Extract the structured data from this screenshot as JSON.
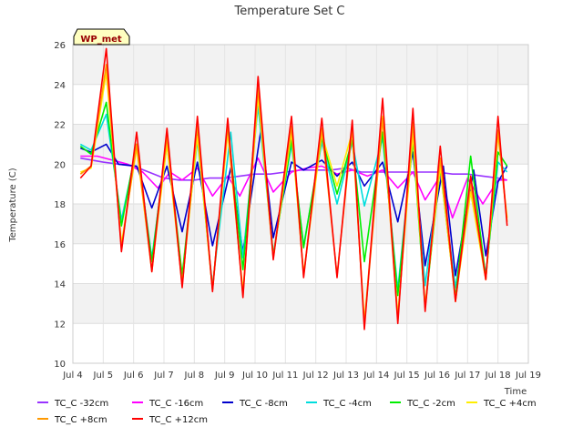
{
  "chart_data": {
    "type": "line",
    "title": "Temperature Set C",
    "xlabel": "Time",
    "ylabel": "Temperature (C)",
    "ylim": [
      10,
      26
    ],
    "xlim": [
      4,
      19
    ],
    "yticks": [
      10,
      12,
      14,
      16,
      18,
      20,
      22,
      24,
      26
    ],
    "xticks": [
      4,
      5,
      6,
      7,
      8,
      9,
      10,
      11,
      12,
      13,
      14,
      15,
      16,
      17,
      18,
      19
    ],
    "xtick_labels": [
      "Jul 4",
      "Jul 5",
      "Jul 6",
      "Jul 7",
      "Jul 8",
      "Jul 9",
      "Jul 10",
      "Jul 11",
      "Jul 12",
      "Jul 13",
      "Jul 14",
      "Jul 15",
      "Jul 16",
      "Jul 17",
      "Jul 18",
      "Jul 19"
    ],
    "grid": true,
    "badge": "WP_met",
    "legend_position": "bottom",
    "series": [
      {
        "name": "TC_C -32cm",
        "color": "#9933ff",
        "x": [
          4.25,
          5.0,
          5.5,
          6.0,
          6.5,
          7.0,
          7.5,
          8.0,
          8.5,
          9.0,
          9.5,
          10.0,
          10.5,
          11.0,
          11.5,
          12.0,
          12.5,
          13.0,
          13.5,
          14.0,
          14.5,
          15.0,
          15.5,
          16.0,
          16.5,
          17.0,
          17.5,
          18.0,
          18.3
        ],
        "y": [
          20.3,
          20.1,
          20.0,
          19.9,
          19.6,
          19.3,
          19.2,
          19.2,
          19.3,
          19.3,
          19.4,
          19.5,
          19.5,
          19.6,
          19.7,
          19.7,
          19.7,
          19.8,
          19.6,
          19.6,
          19.6,
          19.6,
          19.6,
          19.6,
          19.5,
          19.5,
          19.4,
          19.3,
          19.2
        ]
      },
      {
        "name": "TC_C -16cm",
        "color": "#ff00ff",
        "x": [
          4.25,
          4.8,
          5.3,
          5.8,
          6.3,
          6.8,
          7.2,
          7.6,
          8.1,
          8.6,
          9.1,
          9.5,
          10.1,
          10.6,
          11.2,
          11.7,
          12.2,
          12.7,
          13.2,
          13.7,
          14.2,
          14.7,
          15.2,
          15.6,
          16.1,
          16.5,
          17.0,
          17.5,
          18.0,
          18.3
        ],
        "y": [
          20.4,
          20.4,
          20.2,
          20.0,
          19.6,
          18.8,
          19.6,
          19.2,
          19.8,
          18.4,
          19.4,
          18.4,
          20.3,
          18.6,
          19.6,
          19.8,
          19.9,
          19.5,
          19.7,
          19.4,
          19.7,
          18.8,
          19.6,
          18.2,
          19.4,
          17.3,
          19.3,
          18.0,
          19.2,
          19.2
        ]
      },
      {
        "name": "TC_C -8cm",
        "color": "#0000cc",
        "x": [
          4.25,
          4.6,
          5.1,
          5.5,
          6.1,
          6.6,
          7.1,
          7.6,
          8.1,
          8.6,
          9.2,
          9.6,
          10.2,
          10.6,
          11.2,
          11.6,
          12.2,
          12.7,
          13.2,
          13.6,
          14.2,
          14.7,
          15.2,
          15.6,
          16.2,
          16.6,
          17.2,
          17.6,
          18.0,
          18.3
        ],
        "y": [
          20.8,
          20.6,
          21.0,
          20.0,
          19.9,
          17.8,
          19.9,
          16.6,
          20.1,
          15.9,
          19.8,
          15.6,
          21.8,
          16.3,
          20.1,
          19.7,
          20.2,
          19.4,
          20.1,
          18.9,
          20.1,
          17.1,
          20.6,
          14.9,
          19.9,
          14.4,
          19.7,
          15.4,
          19.1,
          19.9
        ]
      },
      {
        "name": "TC_C -4cm",
        "color": "#00dddd",
        "x": [
          4.25,
          4.6,
          5.1,
          5.6,
          6.1,
          6.6,
          7.1,
          7.6,
          8.1,
          8.6,
          9.2,
          9.6,
          10.1,
          10.6,
          11.2,
          11.6,
          12.2,
          12.7,
          13.2,
          13.6,
          14.2,
          14.7,
          15.2,
          15.6,
          16.1,
          16.6,
          17.1,
          17.6,
          18.0,
          18.3
        ],
        "y": [
          21.0,
          20.7,
          22.5,
          17.2,
          20.8,
          15.3,
          21.0,
          14.3,
          21.2,
          13.9,
          21.6,
          15.3,
          22.9,
          15.5,
          21.0,
          15.9,
          21.1,
          18.0,
          21.1,
          17.9,
          21.3,
          13.7,
          21.2,
          13.9,
          19.9,
          13.8,
          18.6,
          14.5,
          20.1,
          19.6
        ]
      },
      {
        "name": "TC_C -2cm",
        "color": "#00ee00",
        "x": [
          4.25,
          4.6,
          5.1,
          5.6,
          6.1,
          6.6,
          7.1,
          7.6,
          8.1,
          8.6,
          9.1,
          9.6,
          10.1,
          10.6,
          11.2,
          11.6,
          12.2,
          12.7,
          13.2,
          13.6,
          14.2,
          14.7,
          15.2,
          15.6,
          16.1,
          16.6,
          17.1,
          17.6,
          18.0,
          18.3
        ],
        "y": [
          20.9,
          20.5,
          23.1,
          16.9,
          21.0,
          15.1,
          21.3,
          14.4,
          21.6,
          13.7,
          21.9,
          14.7,
          23.6,
          15.4,
          21.2,
          15.8,
          21.3,
          18.5,
          21.2,
          15.1,
          21.6,
          13.4,
          21.2,
          12.8,
          19.8,
          13.3,
          20.4,
          14.3,
          20.6,
          19.9
        ]
      },
      {
        "name": "TC_C +4cm",
        "color": "#ffee00",
        "x": [
          4.25,
          4.6,
          5.1,
          5.6,
          6.1,
          6.6,
          7.1,
          7.6,
          8.1,
          8.6,
          9.1,
          9.6,
          10.1,
          10.6,
          11.2,
          11.6,
          12.2,
          12.7,
          13.2,
          13.6,
          14.2,
          14.7,
          15.2,
          15.6,
          16.1,
          16.6,
          17.1,
          17.6,
          18.0,
          18.3
        ],
        "y": [
          19.6,
          19.8,
          24.6,
          16.0,
          20.8,
          14.7,
          21.0,
          14.0,
          21.4,
          13.7,
          21.6,
          13.6,
          23.4,
          15.3,
          21.6,
          14.5,
          21.5,
          18.9,
          21.6,
          12.1,
          22.4,
          12.4,
          21.5,
          12.9,
          19.9,
          13.2,
          18.6,
          14.2,
          21.5,
          17.3
        ]
      },
      {
        "name": "TC_C +8cm",
        "color": "#ff9900",
        "x": [
          4.25,
          4.6,
          5.1,
          5.6,
          6.1,
          6.6,
          7.1,
          7.6,
          8.1,
          8.6,
          9.1,
          9.6,
          10.1,
          10.6,
          11.2,
          11.6,
          12.2,
          12.7,
          13.2,
          13.6,
          14.2,
          14.7,
          15.2,
          15.6,
          16.1,
          16.6,
          17.1,
          17.6,
          18.0,
          18.3
        ],
        "y": [
          19.5,
          19.9,
          25.0,
          15.8,
          21.0,
          14.6,
          21.4,
          13.9,
          21.9,
          13.7,
          21.9,
          13.4,
          23.8,
          15.3,
          21.9,
          14.4,
          21.8,
          14.4,
          21.8,
          11.9,
          22.3,
          12.2,
          22.1,
          12.8,
          20.3,
          13.1,
          19.0,
          14.2,
          21.7,
          17.1
        ]
      },
      {
        "name": "TC_C +12cm",
        "color": "#ff0000",
        "x": [
          4.25,
          4.6,
          5.1,
          5.6,
          6.1,
          6.6,
          7.1,
          7.6,
          8.1,
          8.6,
          9.1,
          9.6,
          10.1,
          10.6,
          11.2,
          11.6,
          12.2,
          12.7,
          13.2,
          13.6,
          14.2,
          14.7,
          15.2,
          15.6,
          16.1,
          16.6,
          17.1,
          17.6,
          18.0,
          18.3
        ],
        "y": [
          19.3,
          19.9,
          25.8,
          15.6,
          21.6,
          14.6,
          21.8,
          13.8,
          22.4,
          13.6,
          22.3,
          13.3,
          24.4,
          15.2,
          22.4,
          14.3,
          22.3,
          14.3,
          22.2,
          11.7,
          23.3,
          12.0,
          22.8,
          12.6,
          20.9,
          13.1,
          19.4,
          14.2,
          22.4,
          16.9
        ]
      }
    ]
  }
}
